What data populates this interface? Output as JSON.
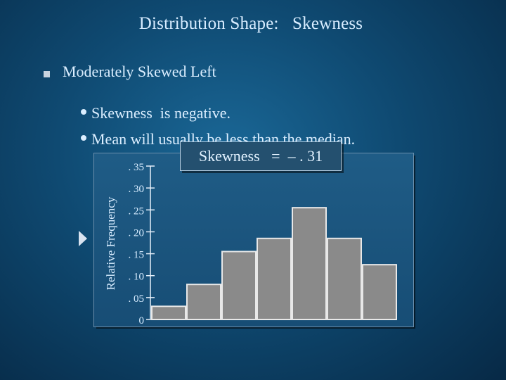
{
  "slide": {
    "title": "Distribution Shape:   Skewness",
    "bullet": "Moderately Skewed Left",
    "subbullets": [
      "Skewness  is negative.",
      "Mean will usually be less than the median."
    ],
    "annotation": "Skewness   =  – . 31"
  },
  "chart_data": {
    "type": "bar",
    "ylabel": "Relative Frequency",
    "xlabel": "",
    "yticks": [
      ". 35",
      ". 30",
      ". 25",
      ". 20",
      ". 15",
      ". 10",
      ". 05",
      "0"
    ],
    "ylim": [
      0,
      0.35
    ],
    "values": [
      0.03,
      0.08,
      0.155,
      0.185,
      0.255,
      0.185,
      0.125
    ],
    "colors": {
      "bar": "#8a8a8a",
      "bar_edge": "#e8e8e8",
      "panel": "#1b5580"
    }
  }
}
